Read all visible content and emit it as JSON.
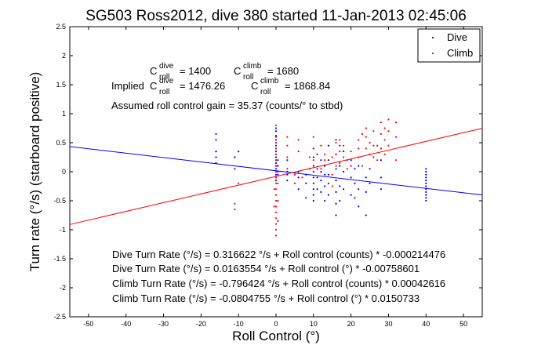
{
  "chart_data": {
    "type": "scatter",
    "title": "SG503 Ross2012, dive 380 started 11-Jan-2013 02:45:06",
    "xlabel": "Roll Control (°)",
    "ylabel": "Turn rate (°/s) (starboard positive)",
    "xlim": [
      -55,
      55
    ],
    "ylim": [
      -2.5,
      2.5
    ],
    "xticks": [
      -50,
      -40,
      -30,
      -20,
      -10,
      0,
      10,
      20,
      30,
      40,
      50
    ],
    "yticks": [
      -2.5,
      -2,
      -1.5,
      -1,
      -0.5,
      0,
      0.5,
      1,
      1.5,
      2,
      2.5
    ],
    "grid": false,
    "legend": {
      "position": "top-right",
      "entries": [
        "Dive",
        "Climb"
      ]
    },
    "colors": {
      "dive": "#0000ff",
      "climb": "#ff0000"
    },
    "series": [
      {
        "name": "Dive",
        "points": [
          [
            -16,
            0.65
          ],
          [
            -16,
            0.55
          ],
          [
            -16,
            0.35
          ],
          [
            -16,
            0.25
          ],
          [
            -16,
            0.15
          ],
          [
            -11,
            0.25
          ],
          [
            -11,
            0.05
          ],
          [
            -10,
            0.35
          ],
          [
            0,
            0.75
          ],
          [
            0,
            0.7
          ],
          [
            0,
            0.62
          ],
          [
            0,
            0.55
          ],
          [
            0,
            0.5
          ],
          [
            0,
            0.45
          ],
          [
            0,
            0.4
          ],
          [
            0,
            0.35
          ],
          [
            0,
            0.3
          ],
          [
            0,
            0.25
          ],
          [
            0,
            0.2
          ],
          [
            0,
            0.15
          ],
          [
            0,
            0.1
          ],
          [
            0,
            0.05
          ],
          [
            0,
            0.0
          ],
          [
            0,
            -0.05
          ],
          [
            0,
            -0.1
          ],
          [
            0,
            -0.15
          ],
          [
            0.5,
            0.2
          ],
          [
            0.5,
            0.1
          ],
          [
            0.5,
            0.0
          ],
          [
            0.5,
            -0.05
          ],
          [
            3,
            0.2
          ],
          [
            3,
            0.0
          ],
          [
            3,
            -0.05
          ],
          [
            3,
            -0.15
          ],
          [
            6,
            0.0
          ],
          [
            6,
            -0.1
          ],
          [
            6,
            -0.3
          ],
          [
            8,
            -0.05
          ],
          [
            8,
            -0.2
          ],
          [
            8,
            -0.45
          ],
          [
            10,
            0.4
          ],
          [
            10,
            0.25
          ],
          [
            10,
            0.1
          ],
          [
            10,
            0.0
          ],
          [
            10,
            -0.1
          ],
          [
            10,
            -0.2
          ],
          [
            10,
            -0.3
          ],
          [
            10,
            -0.4
          ],
          [
            10,
            -0.5
          ],
          [
            11,
            0.3
          ],
          [
            11,
            0.05
          ],
          [
            11,
            -0.1
          ],
          [
            11,
            -0.3
          ],
          [
            12,
            0.2
          ],
          [
            12,
            0.0
          ],
          [
            12,
            -0.15
          ],
          [
            12,
            -0.35
          ],
          [
            13,
            0.1
          ],
          [
            13,
            -0.05
          ],
          [
            13,
            -0.25
          ],
          [
            13,
            -0.5
          ],
          [
            14,
            0.45
          ],
          [
            14,
            0.2
          ],
          [
            14,
            -0.05
          ],
          [
            14,
            -0.2
          ],
          [
            14,
            -0.4
          ],
          [
            16,
            0.55
          ],
          [
            16,
            0.3
          ],
          [
            16,
            0.05
          ],
          [
            16,
            -0.15
          ],
          [
            16,
            -0.35
          ],
          [
            16,
            -0.55
          ],
          [
            16,
            -0.75
          ],
          [
            17,
            0.45
          ],
          [
            17,
            0.1
          ],
          [
            17,
            -0.25
          ],
          [
            17,
            -0.5
          ],
          [
            18,
            0.35
          ],
          [
            18,
            0.0
          ],
          [
            18,
            -0.3
          ],
          [
            20,
            0.2
          ],
          [
            20,
            -0.1
          ],
          [
            20,
            -0.4
          ],
          [
            21,
            0.05
          ],
          [
            21,
            -0.2
          ],
          [
            21,
            -0.45
          ],
          [
            22,
            0.1
          ],
          [
            22,
            -0.3
          ],
          [
            22,
            -0.6
          ],
          [
            24,
            -0.1
          ],
          [
            24,
            -0.35
          ],
          [
            24,
            -0.75
          ],
          [
            25,
            0.05
          ],
          [
            25,
            -0.2
          ],
          [
            28,
            0.2
          ],
          [
            28,
            -0.1
          ],
          [
            28,
            -0.3
          ],
          [
            40,
            0.05
          ],
          [
            40,
            0.0
          ],
          [
            40,
            -0.05
          ],
          [
            40,
            -0.1
          ],
          [
            40,
            -0.15
          ],
          [
            40,
            -0.2
          ],
          [
            40,
            -0.25
          ],
          [
            40,
            -0.3
          ],
          [
            40,
            -0.35
          ],
          [
            40,
            -0.4
          ],
          [
            40,
            -0.45
          ],
          [
            40,
            -0.5
          ]
        ]
      },
      {
        "name": "Climb",
        "points": [
          [
            -11,
            -0.55
          ],
          [
            -11,
            -0.65
          ],
          [
            -10,
            -0.2
          ],
          [
            0,
            0.8
          ],
          [
            0,
            0.6
          ],
          [
            0,
            0.5
          ],
          [
            0,
            0.4
          ],
          [
            0,
            0.3
          ],
          [
            0,
            0.2
          ],
          [
            0,
            0.1
          ],
          [
            0,
            0.0
          ],
          [
            0,
            -0.1
          ],
          [
            0,
            -0.2
          ],
          [
            0,
            -0.3
          ],
          [
            0,
            -0.4
          ],
          [
            0,
            -0.5
          ],
          [
            0,
            -0.6
          ],
          [
            0,
            -0.7
          ],
          [
            0,
            -0.8
          ],
          [
            0,
            -0.9
          ],
          [
            0,
            -1.0
          ],
          [
            0,
            -1.1
          ],
          [
            -0.5,
            -0.3
          ],
          [
            -0.5,
            -0.6
          ],
          [
            0.5,
            -0.2
          ],
          [
            0.5,
            -0.5
          ],
          [
            0.5,
            -0.85
          ],
          [
            3,
            0.6
          ],
          [
            3,
            0.45
          ],
          [
            3,
            0.25
          ],
          [
            3,
            0.05
          ],
          [
            5,
            -0.05
          ],
          [
            5,
            -0.2
          ],
          [
            6,
            0.55
          ],
          [
            6,
            0.35
          ],
          [
            7,
            -0.1
          ],
          [
            9,
            0.25
          ],
          [
            9,
            0.05
          ],
          [
            10,
            0.6
          ],
          [
            10,
            0.4
          ],
          [
            10,
            0.2
          ],
          [
            12,
            0.05
          ],
          [
            12,
            0.45
          ],
          [
            13,
            0.3
          ],
          [
            13,
            0.2
          ],
          [
            15,
            0.25
          ],
          [
            15,
            -0.05
          ],
          [
            15,
            -0.25
          ],
          [
            16,
            0.5
          ],
          [
            16,
            0.3
          ],
          [
            16,
            0.1
          ],
          [
            17,
            0.55
          ],
          [
            17,
            0.35
          ],
          [
            17,
            0.15
          ],
          [
            18,
            0.45
          ],
          [
            18,
            0.25
          ],
          [
            19,
            0.2
          ],
          [
            19,
            0.05
          ],
          [
            20,
            0.35
          ],
          [
            20,
            0.1
          ],
          [
            22,
            0.55
          ],
          [
            22,
            0.4
          ],
          [
            22,
            0.25
          ],
          [
            23,
            0.65
          ],
          [
            23,
            0.1
          ],
          [
            24,
            0.75
          ],
          [
            24,
            0.6
          ],
          [
            24,
            0.4
          ],
          [
            25,
            0.5
          ],
          [
            25,
            0.3
          ],
          [
            26,
            0.7
          ],
          [
            26,
            0.45
          ],
          [
            26,
            0.25
          ],
          [
            27,
            0.45
          ],
          [
            27,
            0.2
          ],
          [
            28,
            0.85
          ],
          [
            28,
            0.65
          ],
          [
            28,
            0.4
          ],
          [
            29,
            0.75
          ],
          [
            29,
            0.55
          ],
          [
            29,
            0.3
          ],
          [
            30,
            0.9
          ],
          [
            30,
            0.7
          ],
          [
            30,
            0.45
          ],
          [
            32,
            0.85
          ],
          [
            32,
            0.6
          ],
          [
            32,
            0.2
          ]
        ]
      }
    ],
    "fit_lines": [
      {
        "name": "Dive",
        "color": "#0000ff",
        "intercept": 0.0163554,
        "slope": -0.00758601
      },
      {
        "name": "Climb",
        "color": "#ff0000",
        "intercept": -0.0804755,
        "slope": 0.0150733
      }
    ],
    "annotations": {
      "c_roll_dive": "= 1400",
      "c_roll_climb": "= 1680",
      "implied_prefix": "Implied",
      "implied_dive": "= 1476.26",
      "implied_climb": "= 1868.84",
      "c_letter": "C",
      "dive_sup": "dive",
      "climb_sup": "climb",
      "roll_sub": "roll",
      "gain": "Assumed roll control gain = 35.37 (counts/° to stbd)",
      "eq1": "Dive Turn Rate (°/s) = 0.316622 °/s + Roll control (counts) * -0.000214476",
      "eq2": "Dive Turn Rate (°/s) = 0.0163554 °/s + Roll control (°) * -0.00758601",
      "eq3": "Climb Turn Rate (°/s) = -0.796424 °/s + Roll control (counts) * 0.00042616",
      "eq4": "Climb Turn Rate (°/s) = -0.0804755 °/s + Roll control (°) * 0.0150733"
    }
  }
}
